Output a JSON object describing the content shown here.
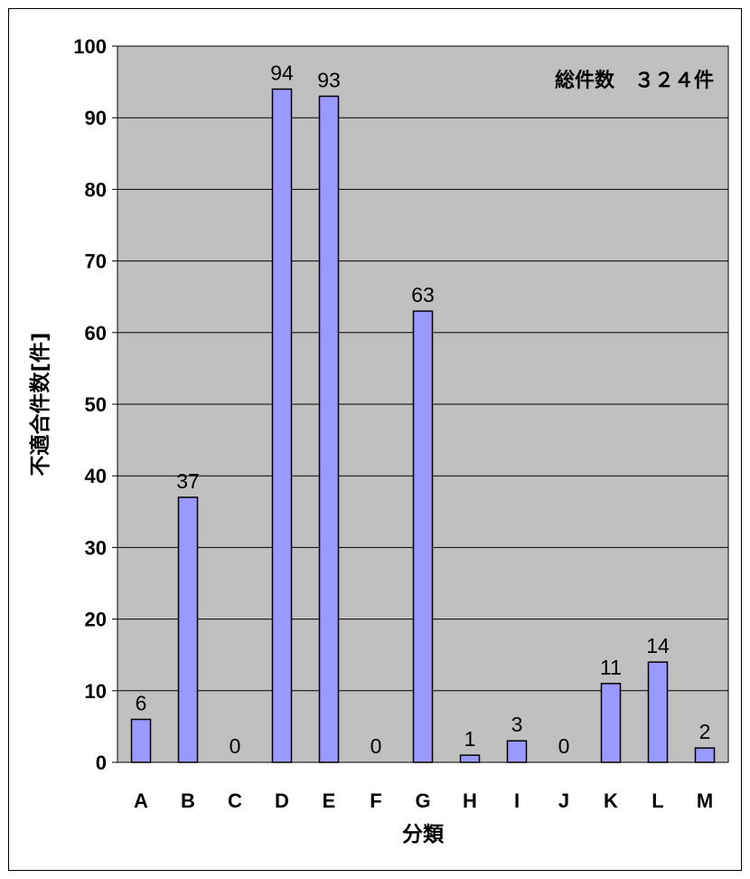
{
  "chart_data": {
    "type": "bar",
    "title": "",
    "xlabel": "分類",
    "ylabel": "不適合件数[件]",
    "categories": [
      "A",
      "B",
      "C",
      "D",
      "E",
      "F",
      "G",
      "H",
      "I",
      "J",
      "K",
      "L",
      "M"
    ],
    "values": [
      6,
      37,
      0,
      94,
      93,
      0,
      63,
      1,
      3,
      0,
      11,
      14,
      2
    ],
    "ylim": [
      0,
      100
    ],
    "yticks": [
      "0",
      "10",
      "20",
      "30",
      "40",
      "50",
      "60",
      "70",
      "80",
      "90",
      "100"
    ],
    "annotation": "総件数　３２４件",
    "grid": true,
    "legend": "none",
    "colors": {
      "bar_fill": "#9999ff",
      "plot_background": "#c0c0c0",
      "bar_stroke": "#000000"
    }
  }
}
